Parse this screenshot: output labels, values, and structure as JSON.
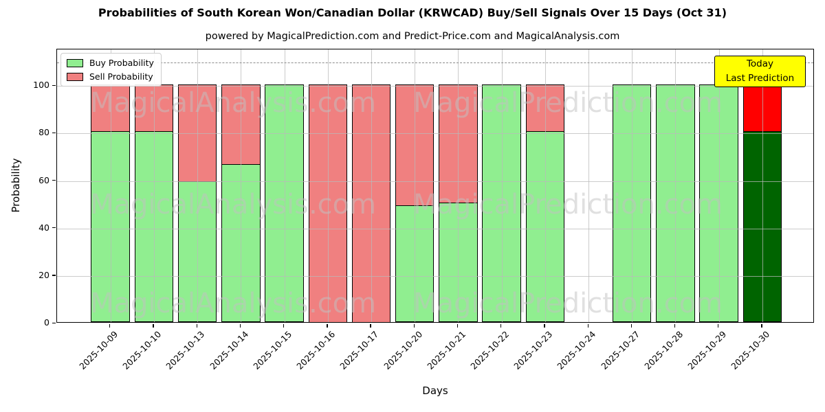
{
  "figure": {
    "title": "Probabilities of South Korean Won/Canadian Dollar (KRWCAD) Buy/Sell Signals Over 15 Days (Oct 31)",
    "subtitle": "powered by MagicalPrediction.com and Predict-Price.com and MagicalAnalysis.com"
  },
  "legend": {
    "items": [
      {
        "label": "Buy Probability",
        "color": "#90ee90"
      },
      {
        "label": "Sell Probability",
        "color": "#f08080"
      }
    ],
    "position": "upper left"
  },
  "annotation": {
    "line1": "Today",
    "line2": "Last Prediction",
    "bg_color": "#ffff00"
  },
  "watermarks": {
    "left_text": "MagicalAnalysis.com",
    "right_text": "MagicalPrediction.com"
  },
  "chart_data": {
    "type": "bar",
    "stacked": true,
    "title": "Probabilities of South Korean Won/Canadian Dollar (KRWCAD) Buy/Sell Signals Over 15 Days (Oct 31)",
    "xlabel": "Days",
    "ylabel": "Probability",
    "categories": [
      "2025-10-09",
      "2025-10-10",
      "2025-10-13",
      "2025-10-14",
      "2025-10-15",
      "2025-10-16",
      "2025-10-17",
      "2025-10-20",
      "2025-10-21",
      "2025-10-22",
      "2025-10-23",
      "2025-10-24",
      "2025-10-27",
      "2025-10-28",
      "2025-10-29",
      "2025-10-30"
    ],
    "series": [
      {
        "name": "Buy Probability",
        "color": "#90ee90",
        "values": [
          80.6,
          80.6,
          59.3,
          66.7,
          100,
          0,
          0,
          49.3,
          50.4,
          100,
          80.6,
          0,
          100,
          100,
          100,
          80.6
        ]
      },
      {
        "name": "Sell Probability",
        "color": "#f08080",
        "values": [
          19.4,
          19.4,
          40.7,
          33.3,
          0,
          100,
          100,
          50.7,
          49.6,
          0,
          19.4,
          0,
          0,
          0,
          0,
          19.4
        ]
      }
    ],
    "today_index": 15,
    "today_colors": {
      "buy": "#006400",
      "sell": "#ff0000"
    },
    "yticks": [
      0,
      20,
      40,
      60,
      80,
      100
    ],
    "ylim": [
      0,
      115.4
    ],
    "dashed_line_y": 110,
    "grid": true,
    "bar_edge_color": "#000000",
    "dashed_line_color": "#8a8a8a"
  }
}
